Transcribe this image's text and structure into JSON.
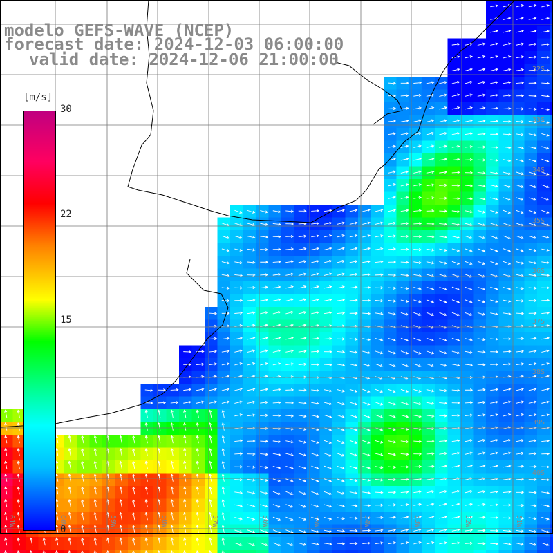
{
  "header": {
    "line1": "modelo GEFS-WAVE (NCEP)",
    "line2": "forecast date: 2024-12-03 06:00:00",
    "line3": "valid date: 2024-12-06 21:00:00"
  },
  "colorbar": {
    "units": "[m/s]",
    "ticks": [
      "30",
      "22",
      "15",
      "0"
    ]
  },
  "lat_labels": [
    "32S",
    "33S",
    "34S",
    "35S",
    "36S",
    "37S",
    "38S",
    "39S",
    "40S"
  ],
  "lon_labels": [
    "61W",
    "60W",
    "59W",
    "58W",
    "57W",
    "56W",
    "55W",
    "54W",
    "53W",
    "52W",
    "51W"
  ],
  "palette": {
    "low": "#0000ff",
    "mid": "#00ff00",
    "high": "#ff0000",
    "max": "#c00080"
  }
}
